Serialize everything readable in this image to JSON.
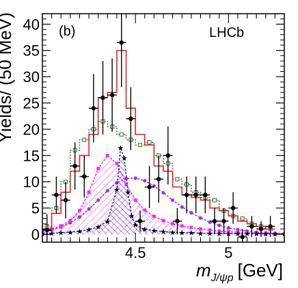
{
  "chart_data": {
    "type": "histogram",
    "panel_label": "(b)",
    "experiment_label": "LHCb",
    "ylabel": "Yields/ (50 MeV)",
    "xlabel_main": "m",
    "xlabel_sub": "J/ψp",
    "xlabel_unit": "[GeV]",
    "xlim": [
      4.0,
      5.3
    ],
    "ylim": [
      -1.5,
      42
    ],
    "yticks": [
      0,
      5,
      10,
      15,
      20,
      25,
      30,
      35,
      40
    ],
    "xticks": [
      4.5,
      5
    ],
    "bin_edges": [
      4.0,
      4.05,
      4.1,
      4.15,
      4.2,
      4.25,
      4.3,
      4.35,
      4.4,
      4.45,
      4.5,
      4.55,
      4.6,
      4.65,
      4.7,
      4.75,
      4.8,
      4.85,
      4.9,
      4.95,
      5.0,
      5.05,
      5.1,
      5.15,
      5.2,
      5.25,
      5.3
    ],
    "colors": {
      "total_fit": "#e8231f",
      "background": "#2e6b2e",
      "broad_state": "#9b30ff",
      "narrow_state": "#ff22ff",
      "narrow_state_2": "#1a1adc",
      "data": "#000000"
    },
    "series": [
      {
        "kind": "data",
        "x": [
          4.025,
          4.075,
          4.125,
          4.175,
          4.225,
          4.275,
          4.325,
          4.375,
          4.425,
          4.475,
          4.525,
          4.575,
          4.625,
          4.675,
          4.725,
          4.775,
          4.825,
          4.875,
          4.925,
          4.975,
          5.025,
          5.075,
          5.125,
          5.175,
          5.225
        ],
        "y": [
          0.8,
          7.5,
          6.5,
          13,
          11,
          24,
          26,
          26.5,
          36.5,
          22,
          2.5,
          9,
          10.5,
          15,
          2.5,
          7.5,
          7.5,
          7.5,
          2.5,
          2.5,
          5,
          -0.5,
          1.5,
          1,
          1.5
        ],
        "yerr": [
          3,
          3.5,
          3.5,
          4.5,
          4,
          6.5,
          7,
          7,
          8.5,
          6,
          2,
          4,
          4.5,
          5.5,
          2.5,
          3.5,
          3.5,
          3.5,
          2.5,
          2.5,
          3,
          1.5,
          2,
          1.5,
          2
        ]
      },
      {
        "kind": "total_fit",
        "y": [
          1,
          4,
          8,
          12,
          15,
          19,
          26,
          27,
          35,
          24,
          19,
          17,
          13,
          12,
          9,
          7.5,
          7,
          6.5,
          5,
          4.5,
          3.5,
          2.5,
          2,
          1.5,
          1
        ]
      },
      {
        "kind": "background",
        "y": [
          1.5,
          5,
          10,
          16,
          18,
          20,
          21.5,
          20.5,
          19,
          18,
          17,
          17.5,
          15,
          13.5,
          10.5,
          9.5,
          8,
          7,
          6.5,
          4.5,
          3.5,
          3,
          2,
          1.5,
          1
        ]
      },
      {
        "kind": "broad_state",
        "x": [
          4.0,
          4.05,
          4.1,
          4.15,
          4.2,
          4.25,
          4.3,
          4.35,
          4.4,
          4.45,
          4.5,
          4.55,
          4.6,
          4.65,
          4.7,
          4.75,
          4.8,
          4.85,
          4.9,
          4.95,
          5.0,
          5.05,
          5.1,
          5.15,
          5.2,
          5.25,
          5.3
        ],
        "y": [
          0.4,
          0.8,
          1.4,
          2.2,
          3.3,
          4.8,
          6.5,
          8.3,
          9.8,
          10.6,
          10.7,
          10.2,
          9.2,
          7.9,
          6.5,
          5.2,
          4.1,
          3.1,
          2.3,
          1.7,
          1.2,
          0.9,
          0.6,
          0.4,
          0.3,
          0.2,
          0.1
        ]
      },
      {
        "kind": "narrow_state",
        "x": [
          4.0,
          4.05,
          4.1,
          4.15,
          4.2,
          4.25,
          4.3,
          4.35,
          4.4,
          4.45,
          4.5,
          4.55,
          4.6,
          4.65,
          4.7,
          4.75,
          4.8,
          4.85,
          4.9,
          4.95,
          5.0,
          5.05,
          5.1,
          5.15,
          5.2,
          5.25,
          5.3
        ],
        "y": [
          0.6,
          1.0,
          1.6,
          2.6,
          4.5,
          8.0,
          12.5,
          15.0,
          13.5,
          9.5,
          6.5,
          4.6,
          3.4,
          2.6,
          2.0,
          1.6,
          1.3,
          1.0,
          0.8,
          0.6,
          0.5,
          0.4,
          0.3,
          0.25,
          0.2,
          0.15,
          0.1
        ]
      },
      {
        "kind": "narrow_state_2",
        "x": [
          4.0,
          4.05,
          4.1,
          4.15,
          4.2,
          4.25,
          4.3,
          4.35,
          4.4,
          4.42,
          4.44,
          4.46,
          4.48,
          4.5,
          4.55,
          4.6,
          4.65,
          4.7,
          4.75,
          4.8,
          4.85,
          4.9,
          4.95,
          5.0,
          5.05,
          5.1,
          5.15,
          5.2,
          5.25,
          5.3
        ],
        "y": [
          0.1,
          0.2,
          0.3,
          0.4,
          0.6,
          0.9,
          1.4,
          2.5,
          8.5,
          16.5,
          14.5,
          8.0,
          3.5,
          1.8,
          1.0,
          0.7,
          0.5,
          0.4,
          0.3,
          0.3,
          0.2,
          0.2,
          0.15,
          0.15,
          0.1,
          0.1,
          0.1,
          0.05,
          0.05,
          0.05
        ]
      }
    ]
  }
}
